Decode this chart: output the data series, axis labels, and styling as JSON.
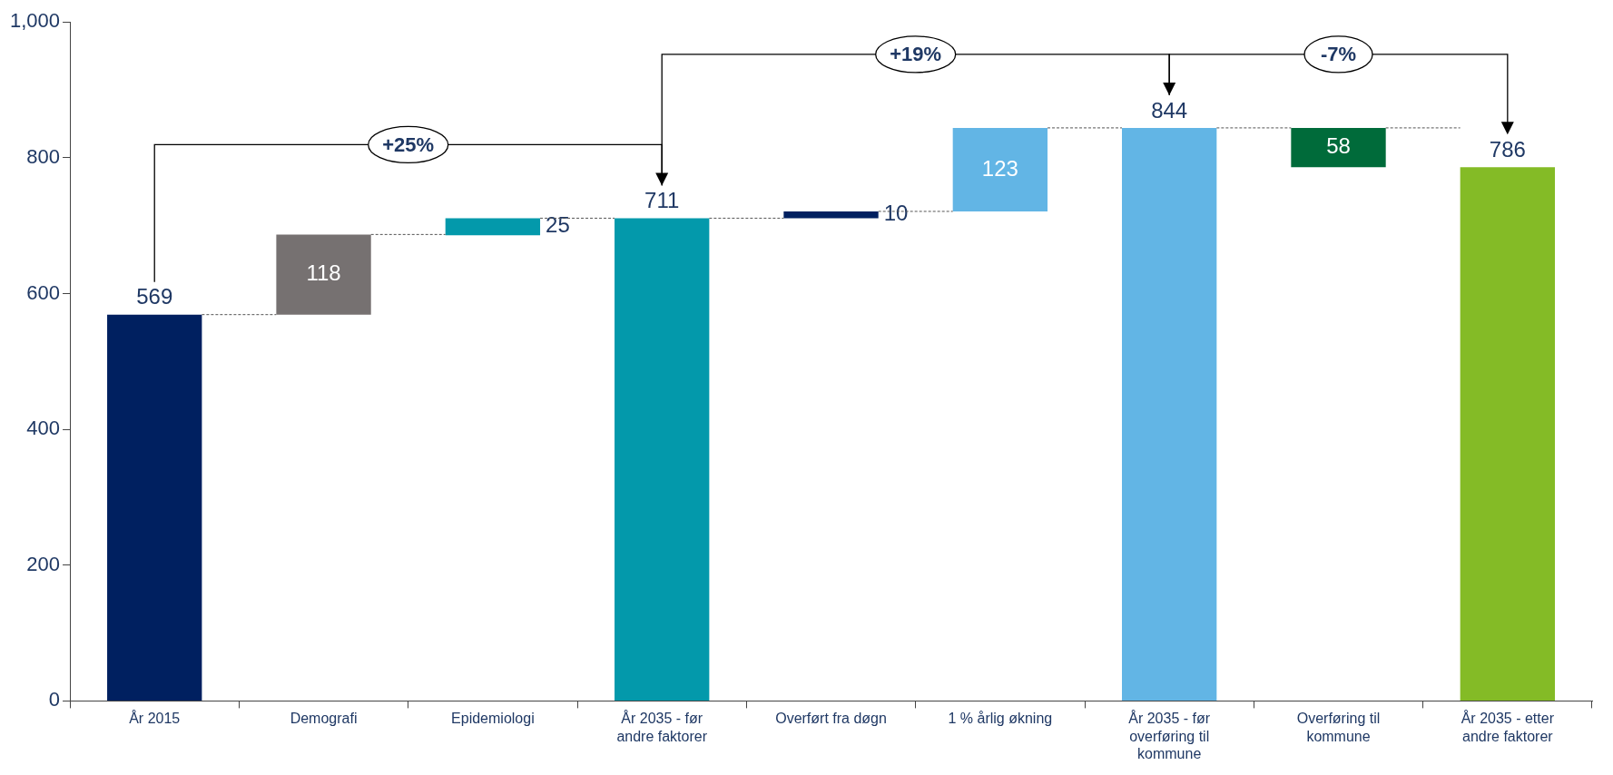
{
  "chart_data": {
    "type": "bar",
    "categories": [
      "År 2015",
      "Demografi",
      "Epidemiologi",
      "År 2035 - før andre faktorer",
      "Overført fra døgn",
      "1 % årlig økning",
      "År 2035 - før overføring til kommune",
      "Overføring til kommune",
      "År 2035 - etter andre faktorer"
    ],
    "values": [
      569,
      118,
      25,
      711,
      10,
      123,
      844,
      58,
      786
    ],
    "base": [
      0,
      569,
      686,
      0,
      711,
      721,
      0,
      786,
      0
    ],
    "colors": [
      "#002060",
      "#767171",
      "#0399ab",
      "#0399ab",
      "#002060",
      "#62b5e5",
      "#62b5e5",
      "#006b3a",
      "#84bb26"
    ],
    "ylim": [
      0,
      1000
    ],
    "yticks": [
      0,
      200,
      400,
      600,
      800,
      {
        "value": 1000,
        "label": "1,000"
      }
    ],
    "grid": false,
    "legend": false,
    "data_labels": true,
    "annotations": [
      "+25%",
      "+19%",
      "-7%"
    ]
  }
}
